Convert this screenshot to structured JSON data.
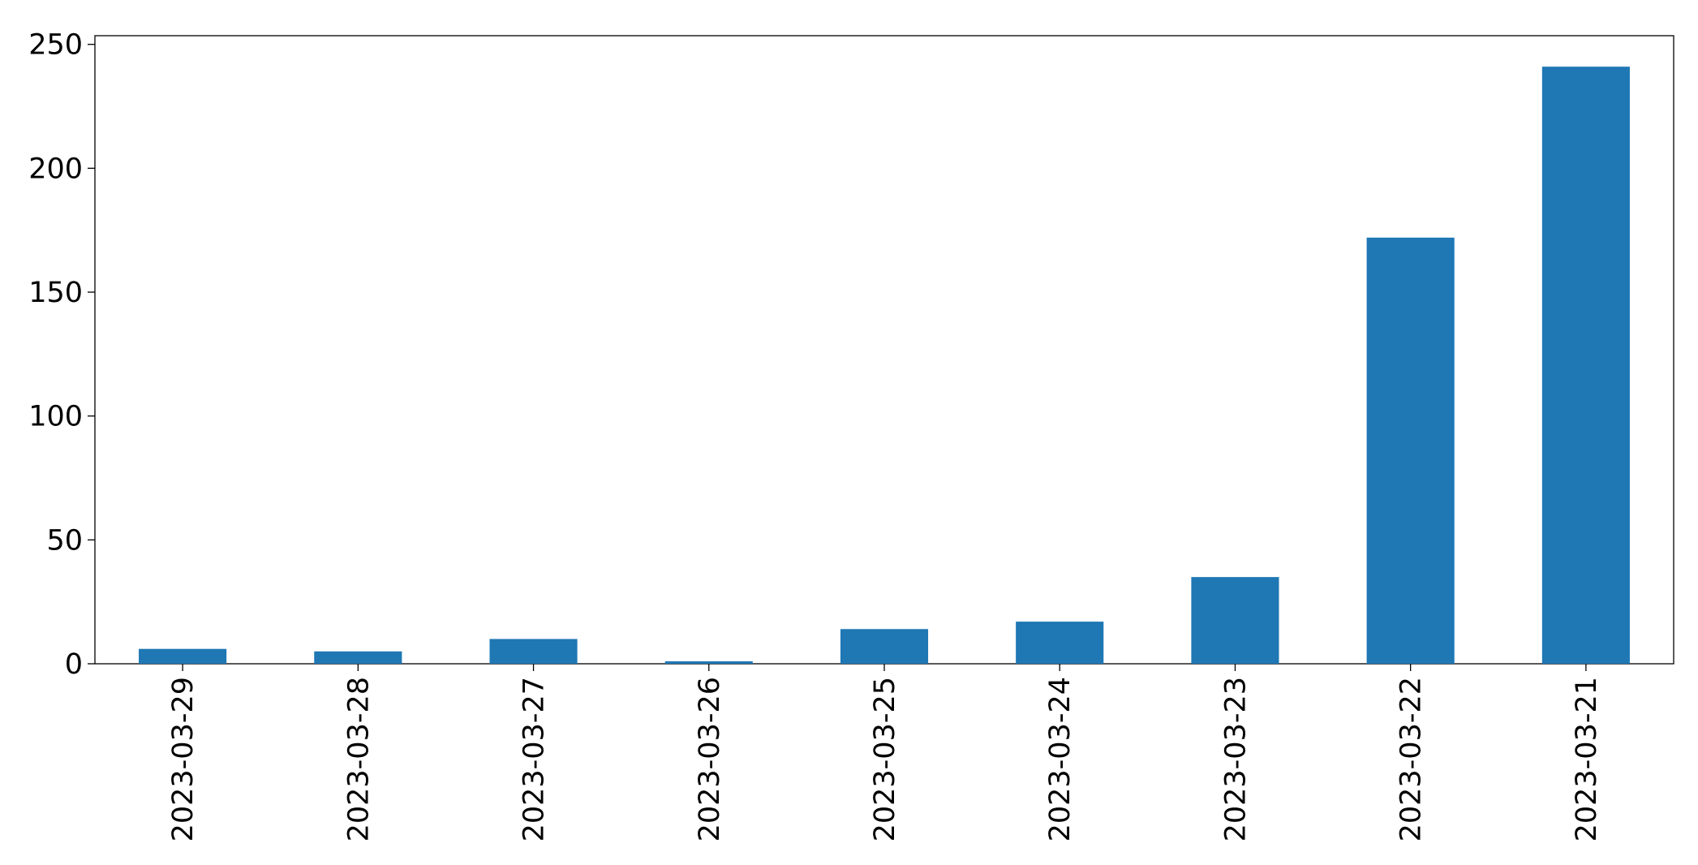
{
  "chart_data": {
    "type": "bar",
    "categories": [
      "2023-03-29",
      "2023-03-28",
      "2023-03-27",
      "2023-03-26",
      "2023-03-25",
      "2023-03-24",
      "2023-03-23",
      "2023-03-22",
      "2023-03-21"
    ],
    "values": [
      6,
      5,
      10,
      1,
      14,
      17,
      35,
      172,
      241
    ],
    "color": "#1f77b4",
    "ylim": [
      0,
      253.5
    ],
    "yticks": [
      0,
      50,
      100,
      150,
      200,
      250
    ]
  }
}
